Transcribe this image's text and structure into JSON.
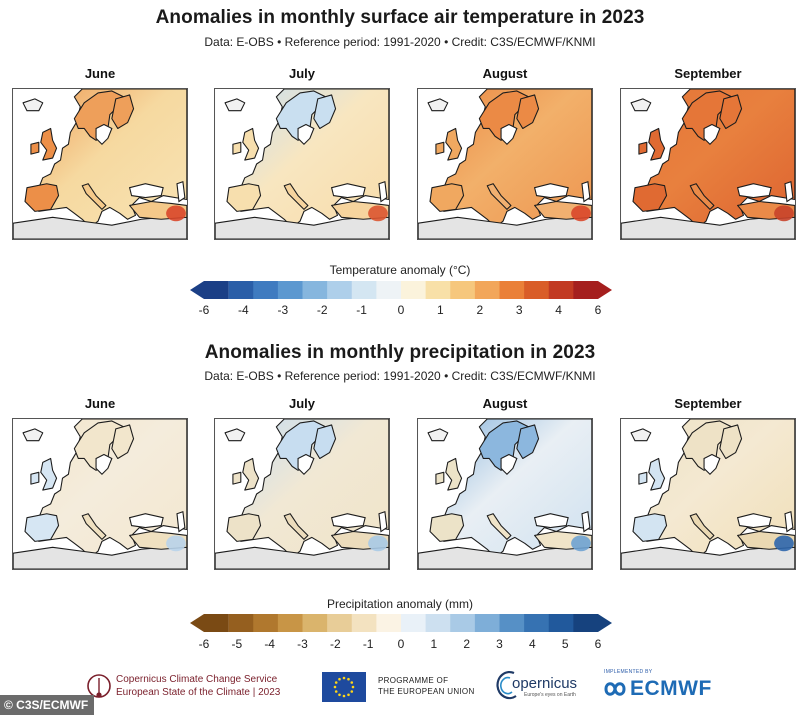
{
  "temperature": {
    "title": "Anomalies in monthly surface air temperature in 2023",
    "subtitle": "Data: E-OBS • Reference period: 1991-2020 • Credit: C3S/ECMWF/KNMI",
    "months": [
      "June",
      "July",
      "August",
      "September"
    ],
    "colorbar": {
      "title": "Temperature anomaly (°C)",
      "ticks": [
        "-6",
        "-4",
        "-3",
        "-2",
        "-1",
        "0",
        "1",
        "2",
        "3",
        "4",
        "6"
      ],
      "colors": [
        "#1b3f86",
        "#2a5ea8",
        "#3f7bc0",
        "#5c98d0",
        "#86b6de",
        "#aecfea",
        "#d4e6f2",
        "#eef3f6",
        "#fbf3dc",
        "#f8e0a8",
        "#f6c77d",
        "#f2a65a",
        "#ea8038",
        "#d95d28",
        "#c23a22",
        "#a51f1e"
      ]
    }
  },
  "precipitation": {
    "title": "Anomalies in monthly precipitation in 2023",
    "subtitle": "Data: E-OBS • Reference period: 1991-2020 • Credit: C3S/ECMWF/KNMI",
    "months": [
      "June",
      "July",
      "August",
      "September"
    ],
    "colorbar": {
      "title": "Precipitation anomaly (mm)",
      "ticks": [
        "-6",
        "-5",
        "-4",
        "-3",
        "-2",
        "-1",
        "0",
        "1",
        "2",
        "3",
        "4",
        "5",
        "6"
      ],
      "colors": [
        "#7a4a14",
        "#955f1f",
        "#b0782e",
        "#c89546",
        "#dab46c",
        "#e8cd98",
        "#f3e2c0",
        "#fbf3e4",
        "#e9f1f8",
        "#cde0f0",
        "#a9cae6",
        "#7eaed8",
        "#5690c6",
        "#3672b2",
        "#21599c",
        "#16427e"
      ]
    }
  },
  "footer": {
    "c3s_line1": "Copernicus Climate Change Service",
    "c3s_line2": "European State of the Climate | 2023",
    "eu_line1": "PROGRAMME OF",
    "eu_line2": "THE EUROPEAN UNION",
    "copernicus_name": "opernicus",
    "copernicus_sub": "Europe's eyes on Earth",
    "ecmwf_small": "IMPLEMENTED BY",
    "ecmwf_name": "ECMWF",
    "credit_tag": "© C3S/ECMWF"
  },
  "map_fills": {
    "temperature": [
      {
        "base": "#f6d9a0",
        "north": "#ee9f5a",
        "west": "#ec8f48",
        "east": "#f8e3b4",
        "south": "#f4c98a",
        "hot": "#d9472a"
      },
      {
        "base": "#f8e6c0",
        "north": "#c9dff0",
        "west": "#f7dfae",
        "east": "#f7dcaa",
        "south": "#f6d49e",
        "hot": "#dc5530"
      },
      {
        "base": "#f2b06a",
        "north": "#eb8a45",
        "west": "#f0a860",
        "east": "#ed9550",
        "south": "#f1b070",
        "hot": "#d9472a"
      },
      {
        "base": "#e8803e",
        "north": "#e57638",
        "west": "#e06a32",
        "east": "#dd6330",
        "south": "#ea8a48",
        "hot": "#c8422a"
      }
    ],
    "precipitation": [
      {
        "base": "#f4ecdc",
        "north": "#f2e6cc",
        "west": "#d6e6f3",
        "east": "#f3e7cf",
        "south": "#efe0c0",
        "hot": "#b8d3ea"
      },
      {
        "base": "#f1e8d4",
        "north": "#c7ddf0",
        "west": "#ede2c8",
        "east": "#f0e4c8",
        "south": "#ecdcbc",
        "hot": "#a9cae6"
      },
      {
        "base": "#e9eff4",
        "north": "#8cb7de",
        "west": "#ece3c8",
        "east": "#cfe1f0",
        "south": "#f0e4c8",
        "hot": "#6ea2d2"
      },
      {
        "base": "#f4e9d2",
        "north": "#eee2c6",
        "west": "#d3e4f2",
        "east": "#f1dfb8",
        "south": "#ead8b2",
        "hot": "#2d66ac"
      }
    ]
  }
}
